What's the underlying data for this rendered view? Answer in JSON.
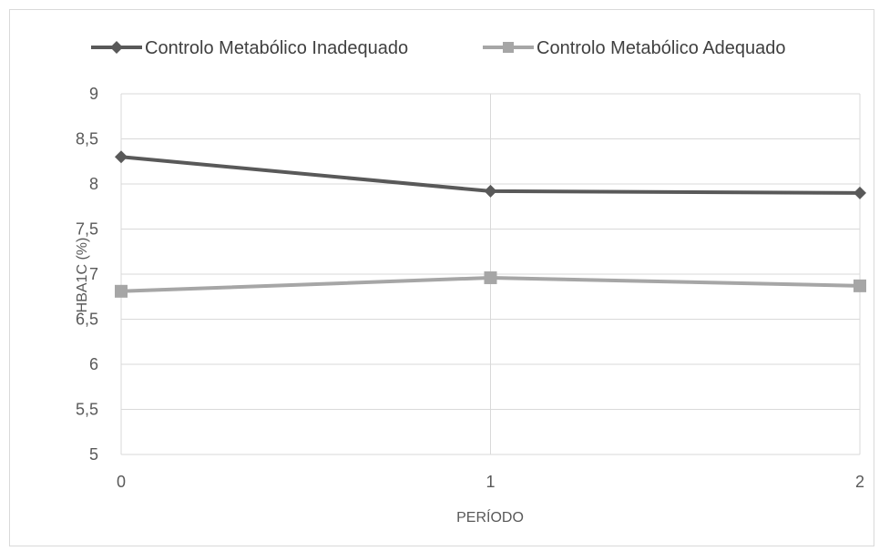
{
  "chart_data": {
    "type": "line",
    "x": [
      0,
      1,
      2
    ],
    "tick_labels_x": [
      "0",
      "1",
      "2"
    ],
    "tick_labels_y": [
      "5",
      "5,5",
      "6",
      "6,5",
      "7",
      "7,5",
      "8",
      "8,5",
      "9"
    ],
    "series": [
      {
        "name": "Controlo Metabólico Inadequado",
        "values": [
          8.3,
          7.92,
          7.9
        ],
        "color": "#595959",
        "marker": "diamond"
      },
      {
        "name": "Controlo Metabólico Adequado",
        "values": [
          6.81,
          6.96,
          6.87
        ],
        "color": "#a6a6a6",
        "marker": "square"
      }
    ],
    "xlabel": "PERÍODO",
    "ylabel": "HBA1C (%)",
    "ylim": [
      5,
      9
    ],
    "xlim": [
      0,
      2
    ],
    "grid": true,
    "legend": "top",
    "colors": {
      "grid": "#d9d9d9",
      "text": "#595959"
    }
  }
}
